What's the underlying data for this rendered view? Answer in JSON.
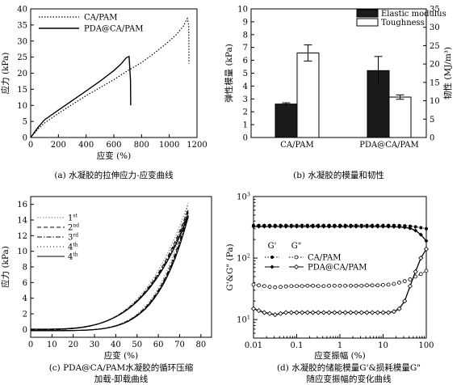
{
  "chart_data": [
    {
      "panel": "a",
      "type": "line",
      "caption": "(a) 水凝胶的拉伸应力-应变曲线",
      "xlabel": "应变 (%)",
      "ylabel": "应力 (kPa)",
      "xlim": [
        0,
        1200
      ],
      "ylim": [
        0,
        40
      ],
      "xticks": [
        0,
        200,
        400,
        600,
        800,
        1000,
        1200
      ],
      "yticks": [
        0,
        5,
        10,
        15,
        20,
        25,
        30,
        35,
        40
      ],
      "legend_position": "top-left",
      "series": [
        {
          "name": "CA/PAM",
          "style": "dotted",
          "x": [
            0,
            50,
            100,
            200,
            300,
            400,
            500,
            600,
            700,
            800,
            900,
            1000,
            1050,
            1100,
            1130,
            1140,
            1142,
            1142
          ],
          "y": [
            0,
            2.5,
            4.5,
            7.5,
            10.3,
            13,
            15.5,
            18,
            20.8,
            23.3,
            26.5,
            30,
            32,
            34.5,
            37,
            35,
            28,
            23
          ]
        },
        {
          "name": "PDA@CA/PAM",
          "style": "solid",
          "x": [
            0,
            50,
            100,
            200,
            300,
            400,
            500,
            600,
            650,
            690,
            710,
            720,
            722
          ],
          "y": [
            0,
            3,
            5.5,
            8.5,
            11.5,
            14.5,
            17.5,
            20.8,
            22.8,
            24.8,
            25.2,
            18,
            10
          ]
        }
      ]
    },
    {
      "panel": "b",
      "type": "bar",
      "caption": "(b) 水凝胶的模量和韧性",
      "categories": [
        "CA/PAM",
        "PDA@CA/PAM"
      ],
      "ylabel": "弹性模量 (kPa)",
      "ylabel_right": "韧性 (MJ/m³)",
      "ylim": [
        0,
        10
      ],
      "ylim_right": [
        0,
        35
      ],
      "yticks": [
        0,
        1,
        2,
        3,
        4,
        5,
        6,
        7,
        8,
        9,
        10
      ],
      "yticks_right": [
        0,
        5,
        10,
        15,
        20,
        25,
        30,
        35
      ],
      "legend_position": "top-right",
      "series": [
        {
          "name": "Elastic modulus",
          "color": "#1a1a1a",
          "axis": "left",
          "values": [
            2.6,
            5.2
          ],
          "errors": [
            0.1,
            1.1
          ]
        },
        {
          "name": "Toughness",
          "color": "#ffffff",
          "axis": "right",
          "values": [
            23,
            11
          ],
          "errors": [
            2.2,
            0.6
          ]
        }
      ]
    },
    {
      "panel": "c",
      "type": "line",
      "caption_line1": "(c) PDA@CA/PAM水凝胶的循环压缩",
      "caption_line2": "加载-卸载曲线",
      "xlabel": "应变 (%)",
      "ylabel": "应力 (kPa)",
      "xlim": [
        0,
        85
      ],
      "ylim": [
        -1,
        17
      ],
      "xticks": [
        0,
        10,
        20,
        30,
        40,
        50,
        60,
        70,
        80
      ],
      "yticks": [
        0,
        2,
        4,
        6,
        8,
        10,
        12,
        14,
        16
      ],
      "legend_position": "top-left",
      "series": [
        {
          "name": "1st",
          "name_base": "1",
          "name_sup": "st",
          "style": "dotted",
          "peak": 16.2
        },
        {
          "name": "2nd",
          "name_base": "2",
          "name_sup": "nd",
          "style": "dashed",
          "peak": 15.4
        },
        {
          "name": "3rd",
          "name_base": "3",
          "name_sup": "rd",
          "style": "dashdot",
          "peak": 15.0
        },
        {
          "name": "4th",
          "name_base": "4",
          "name_sup": "th",
          "style": "dotted2",
          "peak": 14.8
        },
        {
          "name": "4th",
          "name_base": "4",
          "name_sup": "th",
          "style": "solid",
          "peak": 14.5
        }
      ]
    },
    {
      "panel": "d",
      "type": "line",
      "caption_line1": "(d) 水凝胶的储能模量G'&损耗模量G\"",
      "caption_line2": "随应变振幅的变化曲线",
      "xlabel": "应变振幅 (%)",
      "ylabel": "G'&G\" (Pa)",
      "xscale": "log",
      "yscale": "log",
      "xlim": [
        0.01,
        100
      ],
      "ylim": [
        5,
        1000
      ],
      "xticks": [
        0.01,
        0.1,
        1,
        10,
        100
      ],
      "xtick_labels": [
        "0.01",
        "0.1",
        "1",
        "10",
        "100"
      ],
      "yticks": [
        10,
        100,
        1000
      ],
      "legend_header": [
        "G'",
        "G\""
      ],
      "legend_position": "center",
      "series": [
        {
          "name": "CA/PAM G'",
          "marker": "filled-dot",
          "line": "dotted",
          "x": [
            0.01,
            0.0133,
            0.0178,
            0.0237,
            0.0316,
            0.0422,
            0.0562,
            0.075,
            0.1,
            0.133,
            0.178,
            0.237,
            0.316,
            0.422,
            0.562,
            0.75,
            1,
            1.33,
            1.78,
            2.37,
            3.16,
            4.22,
            5.62,
            7.5,
            10,
            13.3,
            17.8,
            23.7,
            31.6,
            42.2,
            56.2,
            75,
            100
          ],
          "y": [
            340,
            340,
            340,
            340,
            340,
            340,
            340,
            340,
            340,
            340,
            340,
            340,
            340,
            340,
            340,
            340,
            340,
            340,
            340,
            340,
            340,
            340,
            340,
            340,
            340,
            340,
            340,
            338,
            335,
            330,
            322,
            312,
            300
          ]
        },
        {
          "name": "CA/PAM G\"",
          "marker": "open-circle",
          "line": "dotted",
          "x": [
            0.01,
            0.0133,
            0.0178,
            0.0237,
            0.0316,
            0.0422,
            0.0562,
            0.075,
            0.1,
            0.133,
            0.178,
            0.237,
            0.316,
            0.422,
            0.562,
            0.75,
            1,
            1.33,
            1.78,
            2.37,
            3.16,
            4.22,
            5.62,
            7.5,
            10,
            13.3,
            17.8,
            23.7,
            31.6,
            42.2,
            56.2,
            75,
            100
          ],
          "y": [
            37,
            36,
            35,
            34,
            33.5,
            34,
            34.5,
            35,
            35,
            35,
            35.5,
            35.5,
            35,
            35,
            35.5,
            35.5,
            35.5,
            35.5,
            35.5,
            35.5,
            35.5,
            36,
            36,
            36,
            36.5,
            37,
            38,
            40,
            42,
            45,
            50,
            55,
            62
          ]
        },
        {
          "name": "PDA@CA/PAM G'",
          "marker": "filled-diamond",
          "line": "solid",
          "x": [
            0.01,
            0.0133,
            0.0178,
            0.0237,
            0.0316,
            0.0422,
            0.0562,
            0.075,
            0.1,
            0.133,
            0.178,
            0.237,
            0.316,
            0.422,
            0.562,
            0.75,
            1,
            1.33,
            1.78,
            2.37,
            3.16,
            4.22,
            5.62,
            7.5,
            10,
            13.3,
            17.8,
            23.7,
            31.6,
            42.2,
            56.2,
            75,
            100
          ],
          "y": [
            325,
            325,
            325,
            325,
            325,
            325,
            325,
            325,
            325,
            325,
            325,
            325,
            325,
            325,
            325,
            325,
            325,
            325,
            325,
            325,
            325,
            325,
            325,
            325,
            325,
            324,
            322,
            320,
            315,
            305,
            280,
            240,
            190
          ]
        },
        {
          "name": "PDA@CA/PAM G\"",
          "marker": "open-diamond",
          "line": "solid",
          "x": [
            0.01,
            0.0133,
            0.0178,
            0.0237,
            0.0316,
            0.0422,
            0.0562,
            0.075,
            0.1,
            0.133,
            0.178,
            0.237,
            0.316,
            0.422,
            0.562,
            0.75,
            1,
            1.33,
            1.78,
            2.37,
            3.16,
            4.22,
            5.62,
            7.5,
            10,
            13.3,
            17.8,
            23.7,
            31.6,
            42.2,
            56.2,
            75,
            100
          ],
          "y": [
            15,
            14,
            13,
            12.5,
            12,
            12.5,
            13,
            13,
            13,
            13,
            13,
            13,
            13,
            13,
            13,
            13,
            13,
            13,
            13,
            13,
            13,
            13,
            13,
            13,
            13,
            13,
            13.5,
            15,
            20,
            35,
            60,
            100,
            140
          ]
        }
      ],
      "legend_entries": [
        "CA/PAM",
        "PDA@CA/PAM"
      ]
    }
  ]
}
